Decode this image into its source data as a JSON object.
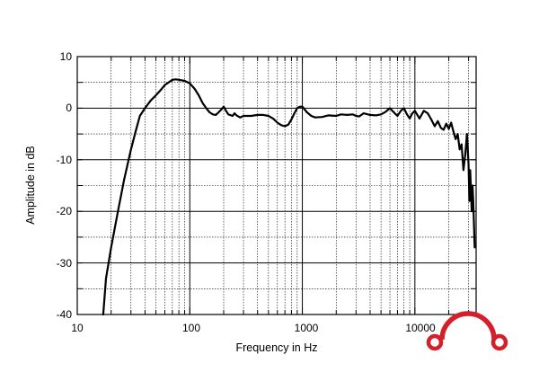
{
  "chart_data": {
    "type": "line",
    "title": "",
    "xlabel": "Frequency in Hz",
    "ylabel": "Amplitude in dB",
    "xscale": "log",
    "xlim": [
      10,
      35000
    ],
    "ylim": [
      -40,
      10
    ],
    "grid": true,
    "x_tick_labels": [
      "10",
      "100",
      "1000",
      "10000"
    ],
    "y_tick_labels": [
      "10",
      "0",
      "-10",
      "-20",
      "-30",
      "-40"
    ],
    "line_color": "#000000",
    "logo_color": "#d4202a",
    "series": [
      {
        "name": "",
        "points": [
          [
            17,
            -40
          ],
          [
            18,
            -33
          ],
          [
            20,
            -27
          ],
          [
            23,
            -20
          ],
          [
            26,
            -14
          ],
          [
            30,
            -8
          ],
          [
            33,
            -4.5
          ],
          [
            36,
            -1.5
          ],
          [
            40,
            0
          ],
          [
            45,
            1.5
          ],
          [
            50,
            2.5
          ],
          [
            55,
            3.5
          ],
          [
            60,
            4.5
          ],
          [
            65,
            5
          ],
          [
            70,
            5.5
          ],
          [
            75,
            5.6
          ],
          [
            80,
            5.5
          ],
          [
            90,
            5.3
          ],
          [
            100,
            4.8
          ],
          [
            110,
            3.8
          ],
          [
            120,
            2.5
          ],
          [
            130,
            1
          ],
          [
            140,
            0
          ],
          [
            150,
            -0.8
          ],
          [
            160,
            -1.2
          ],
          [
            170,
            -1.3
          ],
          [
            180,
            -0.8
          ],
          [
            190,
            -0.3
          ],
          [
            200,
            0.3
          ],
          [
            210,
            -0.5
          ],
          [
            220,
            -1.2
          ],
          [
            240,
            -1.5
          ],
          [
            250,
            -1
          ],
          [
            260,
            -1.4
          ],
          [
            280,
            -1.8
          ],
          [
            300,
            -1.5
          ],
          [
            350,
            -1.5
          ],
          [
            400,
            -1.3
          ],
          [
            450,
            -1.3
          ],
          [
            500,
            -1.5
          ],
          [
            550,
            -2
          ],
          [
            600,
            -2.8
          ],
          [
            650,
            -3.3
          ],
          [
            700,
            -3.5
          ],
          [
            750,
            -3.2
          ],
          [
            800,
            -2.2
          ],
          [
            850,
            -1
          ],
          [
            900,
            0
          ],
          [
            950,
            0.3
          ],
          [
            1000,
            0.3
          ],
          [
            1100,
            -0.8
          ],
          [
            1200,
            -1.5
          ],
          [
            1300,
            -1.8
          ],
          [
            1500,
            -1.7
          ],
          [
            1700,
            -1.4
          ],
          [
            2000,
            -1.5
          ],
          [
            2200,
            -1.2
          ],
          [
            2500,
            -1.3
          ],
          [
            2800,
            -1.2
          ],
          [
            3000,
            -1.5
          ],
          [
            3200,
            -1.6
          ],
          [
            3500,
            -1
          ],
          [
            4000,
            -1.3
          ],
          [
            4500,
            -1.4
          ],
          [
            5000,
            -1.2
          ],
          [
            5500,
            -0.7
          ],
          [
            6000,
            0
          ],
          [
            6500,
            -0.8
          ],
          [
            7000,
            -1.5
          ],
          [
            7500,
            -0.5
          ],
          [
            8000,
            0
          ],
          [
            8500,
            -1.2
          ],
          [
            9000,
            -2
          ],
          [
            9500,
            -1
          ],
          [
            10000,
            -0.5
          ],
          [
            11000,
            -2
          ],
          [
            12000,
            -0.5
          ],
          [
            13000,
            -1
          ],
          [
            14000,
            -2.2
          ],
          [
            15000,
            -3.5
          ],
          [
            16000,
            -2.5
          ],
          [
            17000,
            -3.8
          ],
          [
            18000,
            -4.2
          ],
          [
            19000,
            -3
          ],
          [
            20000,
            -4
          ],
          [
            21000,
            -2.8
          ],
          [
            22000,
            -4.5
          ],
          [
            23000,
            -6
          ],
          [
            24000,
            -5
          ],
          [
            25000,
            -8
          ],
          [
            26000,
            -7
          ],
          [
            27000,
            -12
          ],
          [
            28000,
            -9
          ],
          [
            29000,
            -5
          ],
          [
            30000,
            -11
          ],
          [
            30500,
            -18
          ],
          [
            31000,
            -12
          ],
          [
            31500,
            -16
          ],
          [
            32000,
            -20
          ],
          [
            32500,
            -15
          ],
          [
            33000,
            -18
          ],
          [
            34000,
            -27
          ]
        ]
      }
    ]
  }
}
